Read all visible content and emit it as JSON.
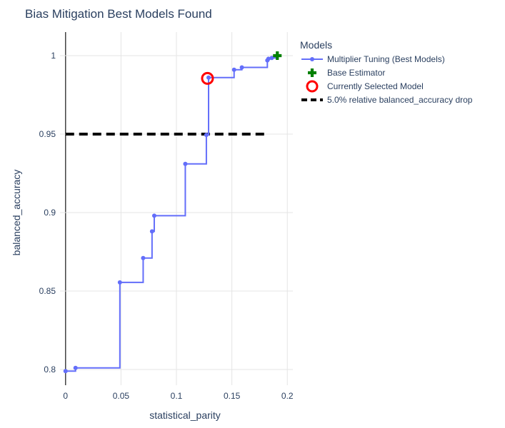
{
  "chart_data": {
    "type": "line",
    "title": "Bias Mitigation Best Models Found",
    "xlabel": "statistical_parity",
    "ylabel": "balanced_accuracy",
    "xlim": [
      -0.005,
      0.205
    ],
    "ylim": [
      0.79,
      1.015
    ],
    "x_ticks": [
      {
        "value": 0,
        "label": "0"
      },
      {
        "value": 0.05,
        "label": "0.05"
      },
      {
        "value": 0.1,
        "label": "0.1"
      },
      {
        "value": 0.15,
        "label": "0.15"
      },
      {
        "value": 0.2,
        "label": "0.2"
      }
    ],
    "y_ticks": [
      {
        "value": 0.8,
        "label": "0.8"
      },
      {
        "value": 0.85,
        "label": "0.85"
      },
      {
        "value": 0.9,
        "label": "0.9"
      },
      {
        "value": 0.95,
        "label": "0.95"
      },
      {
        "value": 1,
        "label": "1"
      }
    ],
    "grid": true,
    "legend_title": "Models",
    "legend_position": "top-right outside",
    "series": [
      {
        "name": "Multiplier Tuning (Best Models)",
        "kind": "step-line",
        "color": "#636efa",
        "points": [
          {
            "x": 0.0,
            "y": 0.799
          },
          {
            "x": 0.009,
            "y": 0.801
          },
          {
            "x": 0.049,
            "y": 0.8555
          },
          {
            "x": 0.07,
            "y": 0.871
          },
          {
            "x": 0.078,
            "y": 0.888
          },
          {
            "x": 0.08,
            "y": 0.898
          },
          {
            "x": 0.108,
            "y": 0.931
          },
          {
            "x": 0.127,
            "y": 0.9495
          },
          {
            "x": 0.129,
            "y": 0.986
          },
          {
            "x": 0.152,
            "y": 0.991
          },
          {
            "x": 0.159,
            "y": 0.9925
          },
          {
            "x": 0.182,
            "y": 0.997
          },
          {
            "x": 0.183,
            "y": 0.998
          },
          {
            "x": 0.186,
            "y": 0.9985
          },
          {
            "x": 0.189,
            "y": 0.9995
          }
        ]
      },
      {
        "name": "Base Estimator",
        "kind": "cross-marker",
        "color": "#008000",
        "points": [
          {
            "x": 0.191,
            "y": 1.0
          }
        ]
      },
      {
        "name": "Currently Selected Model",
        "kind": "open-circle",
        "color": "#ff0000",
        "points": [
          {
            "x": 0.128,
            "y": 0.9855
          }
        ]
      },
      {
        "name": "5.0% relative balanced_accuracy drop",
        "kind": "dashed-line",
        "color": "#000000",
        "points": [
          {
            "x": 0.0,
            "y": 0.95
          },
          {
            "x": 0.183,
            "y": 0.95
          }
        ]
      }
    ]
  }
}
